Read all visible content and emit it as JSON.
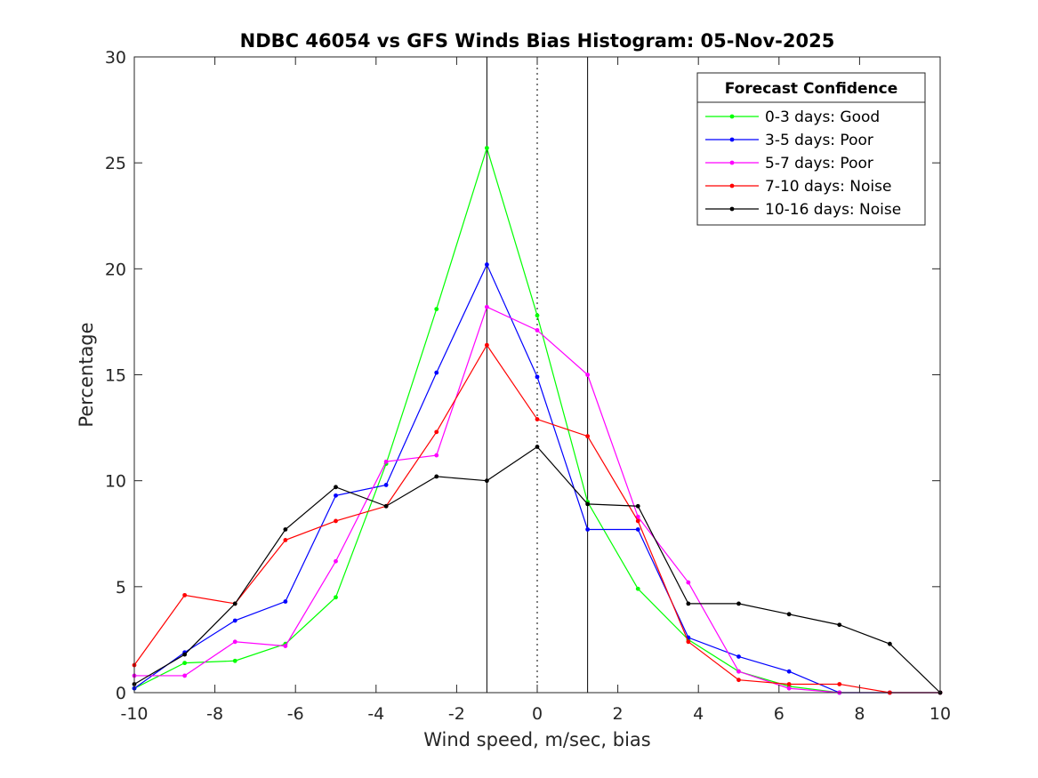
{
  "chart_data": {
    "type": "line",
    "title": "NDBC 46054 vs GFS Winds Bias Histogram: 05-Nov-2025",
    "xlabel": "Wind speed, m/sec, bias",
    "ylabel": "Percentage",
    "xlim": [
      -10,
      10
    ],
    "ylim": [
      0,
      30
    ],
    "xticks": [
      -10,
      -8,
      -6,
      -4,
      -2,
      0,
      2,
      4,
      6,
      8,
      10
    ],
    "yticks": [
      0,
      5,
      10,
      15,
      20,
      25,
      30
    ],
    "grid": false,
    "x": [
      -10,
      -8.75,
      -7.5,
      -6.25,
      -5,
      -3.75,
      -2.5,
      -1.25,
      0,
      1.25,
      2.5,
      3.75,
      5,
      6.25,
      7.5,
      8.75,
      10
    ],
    "vertical_lines": [
      {
        "x": -1.25,
        "style": "solid"
      },
      {
        "x": 0,
        "style": "dotted"
      },
      {
        "x": 1.25,
        "style": "solid"
      }
    ],
    "legend": {
      "title": "Forecast Confidence",
      "placement": "top-right"
    },
    "series": [
      {
        "name": "0-3 days: Good",
        "color": "#00ff00",
        "values": [
          0.2,
          1.4,
          1.5,
          2.3,
          4.5,
          10.8,
          18.1,
          25.7,
          17.8,
          9.0,
          4.9,
          2.5,
          1.0,
          0.3,
          0,
          0,
          0
        ]
      },
      {
        "name": "3-5 days: Poor",
        "color": "#0000ff",
        "values": [
          0.2,
          1.9,
          3.4,
          4.3,
          9.3,
          9.8,
          15.1,
          20.2,
          14.9,
          7.7,
          7.7,
          2.6,
          1.7,
          1.0,
          0,
          0,
          0
        ]
      },
      {
        "name": "5-7 days: Poor",
        "color": "#ff00ff",
        "values": [
          0.8,
          0.8,
          2.4,
          2.2,
          6.2,
          10.9,
          11.2,
          18.2,
          17.1,
          15.0,
          8.3,
          5.2,
          1.0,
          0.2,
          0,
          0,
          0
        ]
      },
      {
        "name": "7-10 days: Noise",
        "color": "#ff0000",
        "values": [
          1.3,
          4.6,
          4.2,
          7.2,
          8.1,
          8.8,
          12.3,
          16.4,
          12.9,
          12.1,
          8.1,
          2.4,
          0.6,
          0.4,
          0.4,
          0,
          0
        ]
      },
      {
        "name": "10-16 days: Noise",
        "color": "#000000",
        "values": [
          0.4,
          1.8,
          4.2,
          7.7,
          9.7,
          8.8,
          10.2,
          10.0,
          11.6,
          8.9,
          8.8,
          4.2,
          4.2,
          3.7,
          3.2,
          2.3,
          0
        ]
      }
    ]
  }
}
